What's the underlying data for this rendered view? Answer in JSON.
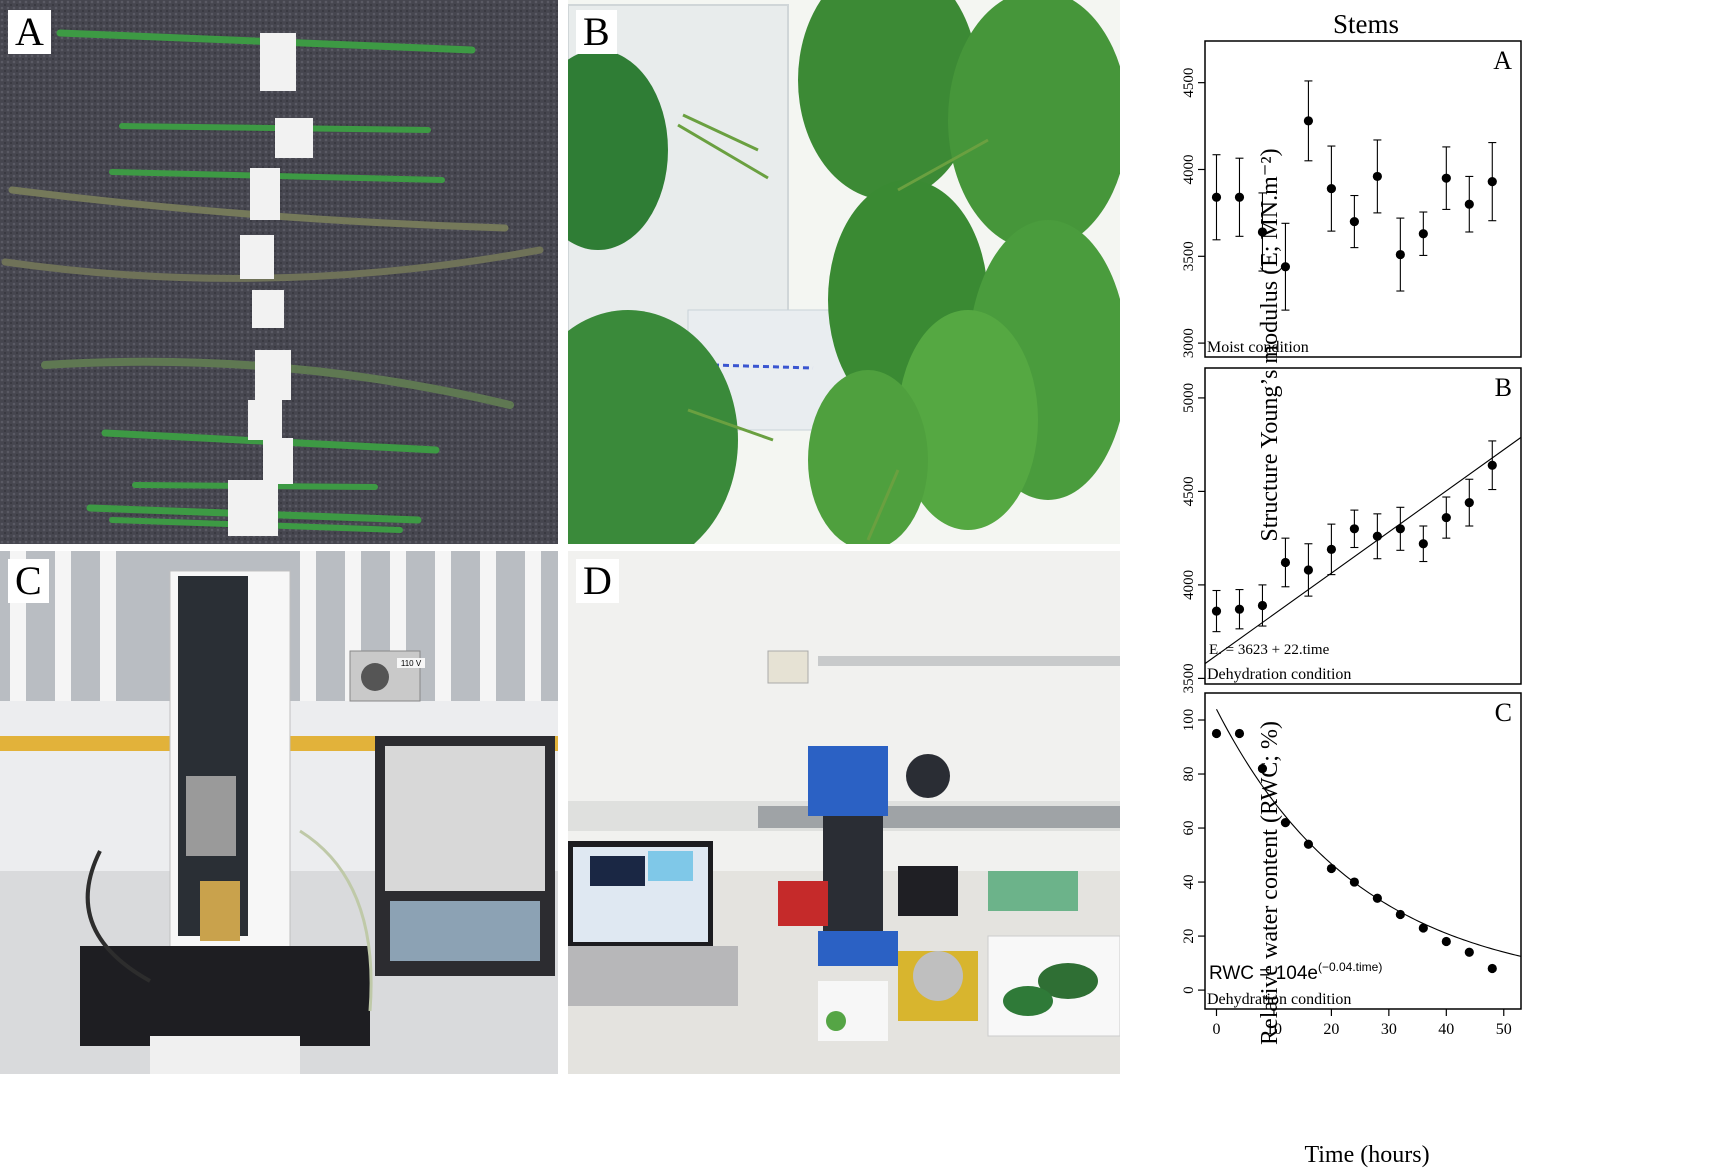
{
  "photos": {
    "a": {
      "label": "A"
    },
    "b": {
      "label": "B"
    },
    "c": {
      "label": "C",
      "plate_text": "110 V"
    },
    "d": {
      "label": "D"
    }
  },
  "figure_title": "Stems",
  "y_label_E": "Structure Young’s modulus (E; MN.m⁻²)",
  "y_label_RWC": "Relative water content (RWC; %)",
  "x_label": "Time (hours)",
  "x_ticks": [
    0,
    10,
    20,
    30,
    40,
    50
  ],
  "chart_data": [
    {
      "type": "scatter",
      "panel_label": "A",
      "annotation": "Moist condition",
      "x": [
        0,
        4,
        8,
        12,
        16,
        20,
        24,
        28,
        32,
        36,
        40,
        44,
        48
      ],
      "y": [
        3840,
        3840,
        3640,
        3440,
        4280,
        3890,
        3700,
        3960,
        3510,
        3630,
        3950,
        3800,
        3930
      ],
      "err": [
        245,
        225,
        225,
        250,
        230,
        245,
        150,
        210,
        210,
        125,
        180,
        160,
        225
      ],
      "ylim": [
        2920,
        4740
      ],
      "yticks": [
        3000,
        3500,
        4000,
        4500
      ],
      "xlim": [
        -2,
        53
      ]
    },
    {
      "type": "scatter",
      "panel_label": "B",
      "annotation": "Dehydration condition",
      "equation": "E. = 3623 + 22.time",
      "fit": {
        "type": "linear",
        "intercept": 3623,
        "slope": 22
      },
      "x": [
        0,
        4,
        8,
        12,
        16,
        20,
        24,
        28,
        32,
        36,
        40,
        44,
        48
      ],
      "y": [
        3860,
        3870,
        3890,
        4120,
        4080,
        4190,
        4300,
        4260,
        4300,
        4220,
        4360,
        4440,
        4640
      ],
      "err": [
        110,
        105,
        110,
        130,
        140,
        135,
        100,
        120,
        115,
        95,
        110,
        125,
        130
      ],
      "ylim": [
        3470,
        5160
      ],
      "yticks": [
        3500,
        4000,
        4500,
        5000
      ],
      "xlim": [
        -2,
        53
      ]
    },
    {
      "type": "scatter",
      "panel_label": "C",
      "annotation": "Dehydration condition",
      "equation_base": "RWC = 104e",
      "equation_exp": "(−0.04.time)",
      "fit": {
        "type": "exponential",
        "a": 104,
        "b": -0.04
      },
      "x": [
        0,
        4,
        8,
        12,
        16,
        20,
        24,
        28,
        32,
        36,
        40,
        44,
        48
      ],
      "y": [
        95,
        95,
        82,
        62,
        54,
        45,
        40,
        34,
        28,
        23,
        18,
        14,
        8
      ],
      "ylim": [
        -7,
        110
      ],
      "yticks": [
        0,
        20,
        40,
        60,
        80,
        100
      ],
      "xlim": [
        -2,
        53
      ]
    }
  ]
}
